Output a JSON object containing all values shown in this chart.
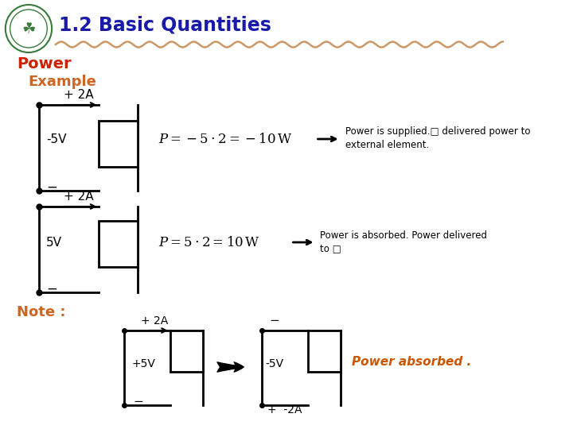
{
  "title": "1.2 Basic Quantities",
  "background_color": "#ffffff",
  "title_color": "#1a1aaa",
  "power_label": "Power",
  "example_label": "Example",
  "note_label": "Note :",
  "section_color_power": "#cc2200",
  "section_color_example": "#cc6622",
  "note_color": "#cc6622",
  "text1_line1": "Power is supplied.□ delivered power to",
  "text1_line2": "external element.",
  "text2_line1": "Power is absorbed. Power delivered",
  "text2_line2": "to □",
  "power_absorbed": "Power absorbed .",
  "wavy_color": "#cc9966",
  "power_absorbed_color": "#cc5500"
}
